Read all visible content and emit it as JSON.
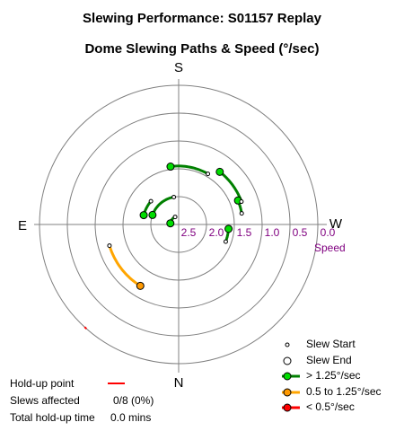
{
  "title": "Slewing Performance: S01157 Replay",
  "subtitle": "Dome Slewing Paths & Speed (°/sec)",
  "chart_data": {
    "type": "polar",
    "compass": {
      "top": "S",
      "bottom": "N",
      "left": "E",
      "right": "W"
    },
    "radial_axis": {
      "label": "Speed",
      "unit": "°/sec",
      "tick_labels": [
        "2.5",
        "2.0",
        "1.5",
        "1.0",
        "0.5",
        "0.0"
      ],
      "tick_values": [
        2.5,
        2.0,
        1.5,
        1.0,
        0.5,
        0.0
      ],
      "range": [
        0,
        2.5
      ],
      "center_value": 2.5,
      "outer_value": 0.0
    },
    "slews": [
      {
        "from_az": 70,
        "to_az": 85,
        "speed": 1.6,
        "category": "> 1.25°/sec"
      },
      {
        "from_az": 100,
        "to_az": 112,
        "speed": 1.35,
        "category": "> 1.25°/sec"
      },
      {
        "from_az": 110,
        "to_az": 142,
        "speed": 1.3,
        "category": "> 1.25°/sec"
      },
      {
        "from_az": 150,
        "to_az": 188,
        "speed": 1.45,
        "category": "> 1.25°/sec"
      },
      {
        "from_az": 190,
        "to_az": 250,
        "speed": 2.0,
        "category": "> 1.25°/sec"
      },
      {
        "from_az": 205,
        "to_az": 262,
        "speed": 2.35,
        "category": "> 1.25°/sec"
      },
      {
        "from_az": 230,
        "to_az": 255,
        "speed": 1.85,
        "category": "> 1.25°/sec"
      },
      {
        "from_az": 287,
        "to_az": 328,
        "speed": 1.2,
        "category": "0.5 to 1.25°/sec"
      }
    ],
    "holdup_points": [
      {
        "az": 318,
        "speed": 0.0
      }
    ]
  },
  "legend": {
    "items": [
      {
        "label": "Slew Start",
        "symbol": "start-marker"
      },
      {
        "label": "Slew End",
        "symbol": "end-marker"
      },
      {
        "label": "> 1.25°/sec",
        "symbol": "line",
        "color": "#008000"
      },
      {
        "label": "0.5 to 1.25°/sec",
        "symbol": "line",
        "color": "#ffa500"
      },
      {
        "label": "< 0.5°/sec",
        "symbol": "line",
        "color": "#ff0000"
      }
    ]
  },
  "stats": {
    "holdup_label": "Hold-up point",
    "holdup_color": "#ff0000",
    "slews_label": "Slews affected",
    "slews_value": "0/8 (0%)",
    "time_label": "Total hold-up time",
    "time_value": "0.0 mins"
  },
  "colors": {
    "grid": "#808080",
    "fast": "#008000",
    "fast_marker": "#00dd00",
    "medium": "#ffa500",
    "medium_marker": "#ff9900",
    "slow": "#ff0000",
    "tick_label": "#800080"
  }
}
